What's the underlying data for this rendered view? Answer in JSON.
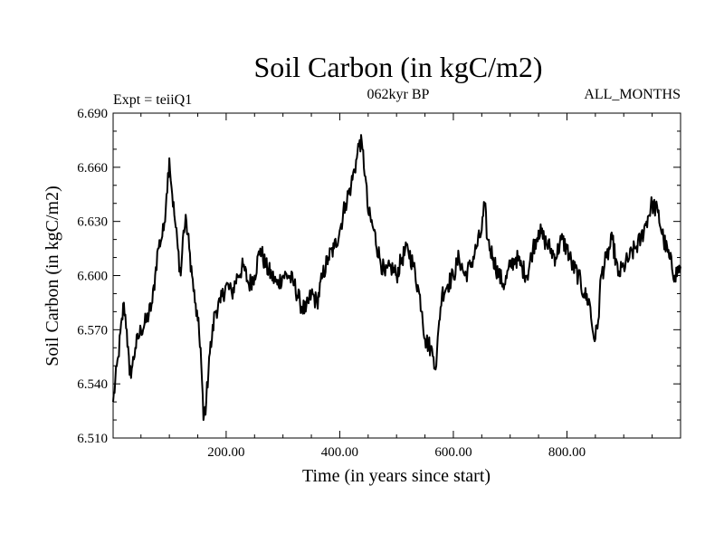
{
  "chart_data": {
    "type": "line",
    "title": "Soil Carbon (in kgC/m2)",
    "subtitle_left": "Expt = teiiQ1",
    "subtitle_center": "062kyr BP",
    "subtitle_right": "ALL_MONTHS",
    "xlabel": "Time (in years since start)",
    "ylabel": "Soil Carbon (in kgC/m2)",
    "xlim": [
      1,
      1000
    ],
    "ylim": [
      6.51,
      6.69
    ],
    "x_ticks": [
      200,
      400,
      600,
      800
    ],
    "x_tick_labels": [
      "200.00",
      "400.00",
      "600.00",
      "800.00"
    ],
    "y_ticks": [
      6.51,
      6.54,
      6.57,
      6.6,
      6.63,
      6.66,
      6.69
    ],
    "y_tick_labels": [
      "6.510",
      "6.540",
      "6.570",
      "6.600",
      "6.630",
      "6.660",
      "6.690"
    ],
    "series": [
      {
        "color": "#000000",
        "x": [
          1,
          10,
          20,
          25,
          30,
          35,
          40,
          45,
          50,
          60,
          70,
          75,
          80,
          90,
          95,
          100,
          105,
          110,
          115,
          120,
          125,
          130,
          135,
          140,
          145,
          150,
          155,
          160,
          165,
          170,
          175,
          180,
          190,
          200,
          210,
          220,
          230,
          240,
          250,
          260,
          270,
          280,
          290,
          300,
          310,
          320,
          330,
          340,
          350,
          360,
          370,
          380,
          390,
          400,
          410,
          420,
          430,
          435,
          440,
          445,
          450,
          460,
          470,
          480,
          490,
          500,
          510,
          520,
          530,
          540,
          545,
          550,
          560,
          565,
          570,
          575,
          580,
          590,
          600,
          610,
          620,
          630,
          640,
          650,
          655,
          660,
          670,
          680,
          690,
          700,
          710,
          720,
          730,
          740,
          750,
          760,
          770,
          780,
          790,
          800,
          810,
          820,
          830,
          840,
          845,
          850,
          855,
          860,
          870,
          880,
          890,
          900,
          910,
          920,
          930,
          940,
          950,
          960,
          970,
          980,
          990,
          1000
        ],
        "y": [
          6.53,
          6.555,
          6.585,
          6.57,
          6.545,
          6.55,
          6.56,
          6.565,
          6.57,
          6.575,
          6.585,
          6.6,
          6.615,
          6.625,
          6.645,
          6.665,
          6.645,
          6.63,
          6.615,
          6.6,
          6.625,
          6.63,
          6.615,
          6.6,
          6.585,
          6.575,
          6.56,
          6.52,
          6.53,
          6.555,
          6.565,
          6.58,
          6.585,
          6.595,
          6.59,
          6.6,
          6.605,
          6.595,
          6.6,
          6.615,
          6.605,
          6.6,
          6.595,
          6.6,
          6.6,
          6.595,
          6.585,
          6.58,
          6.59,
          6.585,
          6.6,
          6.61,
          6.615,
          6.625,
          6.64,
          6.65,
          6.665,
          6.675,
          6.67,
          6.655,
          6.635,
          6.625,
          6.61,
          6.6,
          6.605,
          6.6,
          6.61,
          6.615,
          6.605,
          6.59,
          6.58,
          6.565,
          6.56,
          6.555,
          6.55,
          6.575,
          6.59,
          6.595,
          6.6,
          6.61,
          6.6,
          6.605,
          6.615,
          6.625,
          6.64,
          6.62,
          6.61,
          6.6,
          6.595,
          6.605,
          6.61,
          6.605,
          6.6,
          6.615,
          6.625,
          6.62,
          6.615,
          6.61,
          6.62,
          6.615,
          6.605,
          6.6,
          6.59,
          6.585,
          6.57,
          6.565,
          6.575,
          6.6,
          6.61,
          6.62,
          6.6,
          6.605,
          6.61,
          6.615,
          6.62,
          6.63,
          6.64,
          6.635,
          6.62,
          6.61,
          6.6,
          6.605
        ]
      }
    ]
  }
}
